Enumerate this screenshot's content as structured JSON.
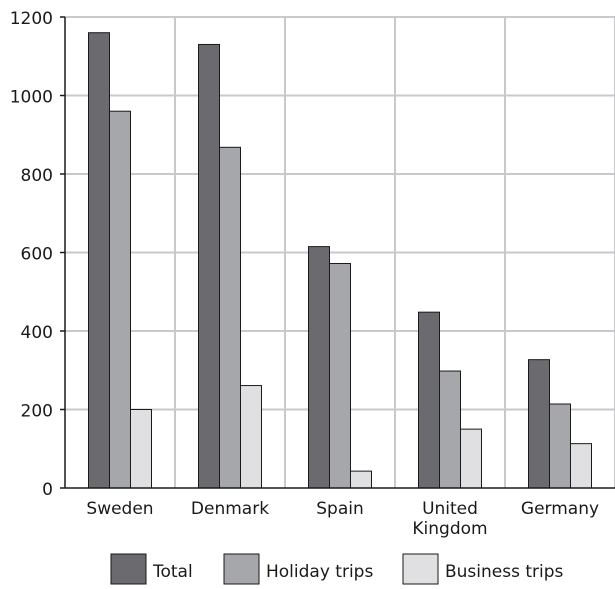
{
  "chart_data": {
    "type": "bar",
    "title": "",
    "xlabel": "",
    "ylabel": "",
    "categories": [
      "Sweden",
      "Denmark",
      "Spain",
      "United Kingdom",
      "Germany"
    ],
    "category_label_lines": [
      [
        "Sweden"
      ],
      [
        "Denmark"
      ],
      [
        "Spain"
      ],
      [
        "United",
        "Kingdom"
      ],
      [
        "Germany"
      ]
    ],
    "series": [
      {
        "name": "Total",
        "color": "#6b6b6f",
        "values": [
          1160,
          1130,
          615,
          448,
          327
        ]
      },
      {
        "name": "Holiday trips",
        "color": "#a6a7aa",
        "values": [
          960,
          868,
          572,
          298,
          214
        ]
      },
      {
        "name": "Business trips",
        "color": "#e0e0e2",
        "values": [
          200,
          261,
          43,
          150,
          113
        ]
      }
    ],
    "ylim": [
      0,
      1200
    ],
    "yticks": [
      0,
      200,
      400,
      600,
      800,
      1000,
      1200
    ],
    "grid": true,
    "legend_position": "bottom"
  }
}
